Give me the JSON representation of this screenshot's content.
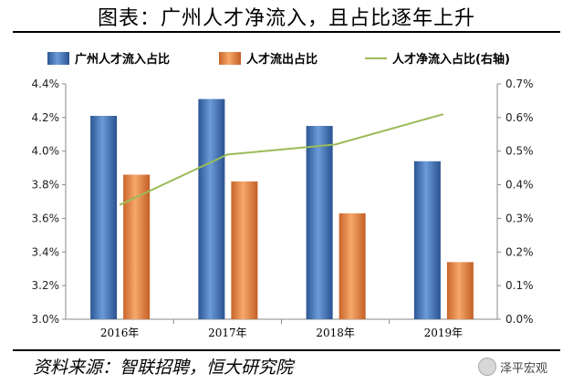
{
  "header": {
    "title": "图表：广州人才净流入，且占比逐年上升"
  },
  "footer": {
    "source": "资料来源：智联招聘，恒大研究院",
    "watermark": "泽平宏观"
  },
  "colors": {
    "inflow": "#3f73b8",
    "outflow": "#e8853e",
    "net": "#9bbb59",
    "axis": "#888888"
  },
  "chart_data": {
    "type": "bar",
    "categories": [
      "2016年",
      "2017年",
      "2018年",
      "2019年"
    ],
    "series": [
      {
        "name": "广州人才流入占比",
        "kind": "bar",
        "axis": "left",
        "values": [
          4.21,
          4.31,
          4.15,
          3.94
        ]
      },
      {
        "name": "人才流出占比",
        "kind": "bar",
        "axis": "left",
        "values": [
          3.86,
          3.82,
          3.63,
          3.34
        ]
      },
      {
        "name": "人才净流入占比(右轴)",
        "kind": "line",
        "axis": "right",
        "values": [
          0.34,
          0.49,
          0.52,
          0.61
        ]
      }
    ],
    "y_left": {
      "min": 3.0,
      "max": 4.4,
      "step": 0.2,
      "unit": "%",
      "ticks": [
        "3.0%",
        "3.2%",
        "3.4%",
        "3.6%",
        "3.8%",
        "4.0%",
        "4.2%",
        "4.4%"
      ]
    },
    "y_right": {
      "min": 0.0,
      "max": 0.7,
      "step": 0.1,
      "unit": "%",
      "ticks": [
        "0.0%",
        "0.1%",
        "0.2%",
        "0.3%",
        "0.4%",
        "0.5%",
        "0.6%",
        "0.7%"
      ]
    },
    "legend_position": "top",
    "grid": false
  }
}
